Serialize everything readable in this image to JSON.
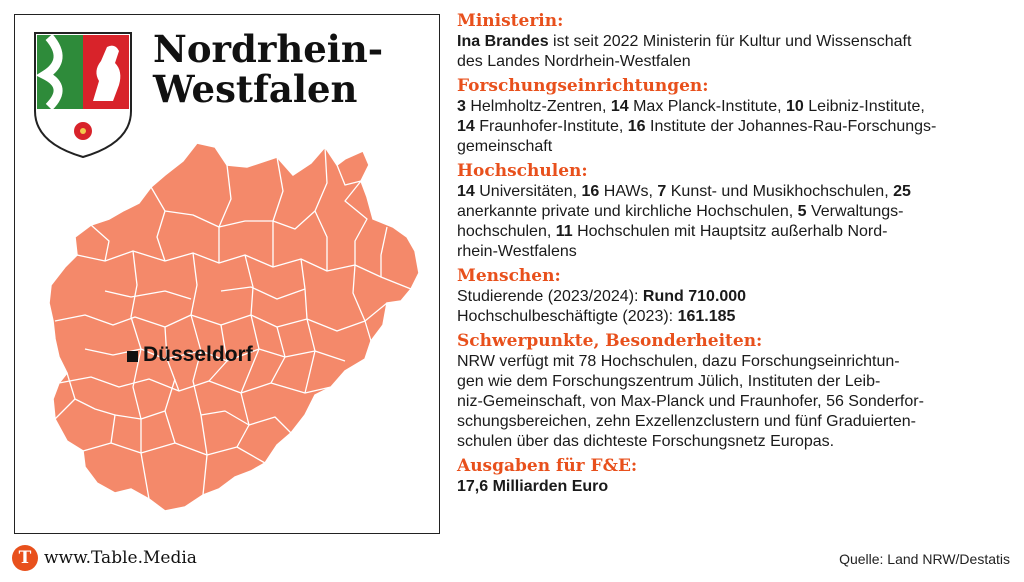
{
  "map": {
    "title_line1": "Nordrhein-",
    "title_line2": "Westfalen",
    "capital": "Düsseldorf",
    "fill_color": "#f4896a",
    "border_color": "#ffffff"
  },
  "sections": [
    {
      "heading": "Ministerin:",
      "lines": [
        [
          {
            "b": "Ina Brandes"
          },
          {
            "t": " ist seit 2022 Ministerin für Kultur und Wissenschaft"
          }
        ],
        [
          {
            "t": "des Landes Nordrhein-Westfalen"
          }
        ]
      ]
    },
    {
      "heading": "Forschungseinrichtungen:",
      "lines": [
        [
          {
            "b": "3"
          },
          {
            "t": " Helmholtz-Zentren, "
          },
          {
            "b": "14"
          },
          {
            "t": " Max Planck-Institute, "
          },
          {
            "b": "10"
          },
          {
            "t": " Leibniz-Institute,"
          }
        ],
        [
          {
            "b": "14"
          },
          {
            "t": " Fraunhofer-Institute, "
          },
          {
            "b": "16"
          },
          {
            "t": " Institute der Johannes-Rau-Forschungs-"
          }
        ],
        [
          {
            "t": "gemeinschaft"
          }
        ]
      ]
    },
    {
      "heading": "Hochschulen:",
      "lines": [
        [
          {
            "b": "14"
          },
          {
            "t": " Universitäten, "
          },
          {
            "b": "16"
          },
          {
            "t": " HAWs, "
          },
          {
            "b": "7"
          },
          {
            "t": " Kunst- und Musikhochschulen, "
          },
          {
            "b": "25"
          }
        ],
        [
          {
            "t": "anerkannte private und kirchliche Hochschulen, "
          },
          {
            "b": "5"
          },
          {
            "t": " Verwaltungs-"
          }
        ],
        [
          {
            "t": "hochschulen, "
          },
          {
            "b": "11"
          },
          {
            "t": " Hochschulen mit Hauptsitz außerhalb Nord-"
          }
        ],
        [
          {
            "t": "rhein-Westfalens"
          }
        ]
      ]
    },
    {
      "heading": "Menschen:",
      "lines": [
        [
          {
            "t": "Studierende (2023/2024): "
          },
          {
            "b": "Rund 710.000"
          }
        ],
        [
          {
            "t": "Hochschulbeschäftigte (2023): "
          },
          {
            "b": "161.185"
          }
        ]
      ]
    },
    {
      "heading": "Schwerpunkte, Besonderheiten:",
      "lines": [
        [
          {
            "t": "NRW verfügt mit 78 Hochschulen, dazu Forschungseinrichtun-"
          }
        ],
        [
          {
            "t": "gen wie dem Forschungszentrum Jülich, Instituten der Leib-"
          }
        ],
        [
          {
            "t": "niz-Gemeinschaft, von Max-Planck und Fraunhofer, 56 Sonderfor-"
          }
        ],
        [
          {
            "t": "schungsbereichen, zehn Exzellenzclustern und fünf Graduierten-"
          }
        ],
        [
          {
            "t": "schulen über das dichteste Forschungsnetz Europas."
          }
        ]
      ]
    },
    {
      "heading": "Ausgaben für F&E:",
      "lines": [
        [
          {
            "b": "17,6 Milliarden Euro"
          }
        ]
      ]
    }
  ],
  "footer": {
    "logo_letter": "T",
    "site": "www.Table.Media",
    "source": "Quelle: Land NRW/Destatis"
  },
  "colors": {
    "accent": "#e8501c",
    "coat_green": "#2e8b3a",
    "coat_red": "#d8232a"
  }
}
